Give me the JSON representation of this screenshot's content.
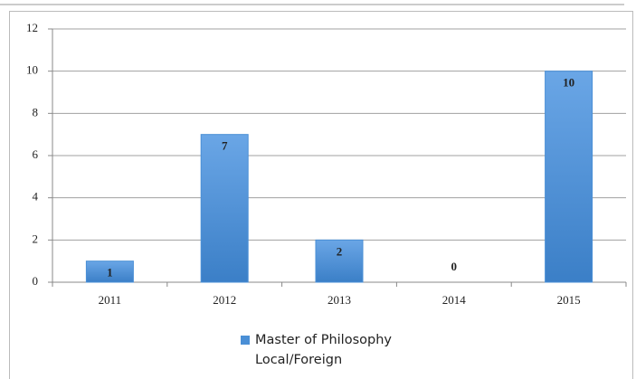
{
  "chart_data": {
    "type": "bar",
    "categories": [
      "2011",
      "2012",
      "2013",
      "2014",
      "2015"
    ],
    "series": [
      {
        "name": "Master of Philosophy Local/Foreign",
        "color": "#4a8fd6",
        "values": [
          1,
          7,
          2,
          0,
          10
        ]
      }
    ],
    "ylim": [
      0,
      12
    ],
    "yticks": [
      0,
      2,
      4,
      6,
      8,
      10,
      12
    ],
    "grid": true,
    "legend": "bottom"
  }
}
